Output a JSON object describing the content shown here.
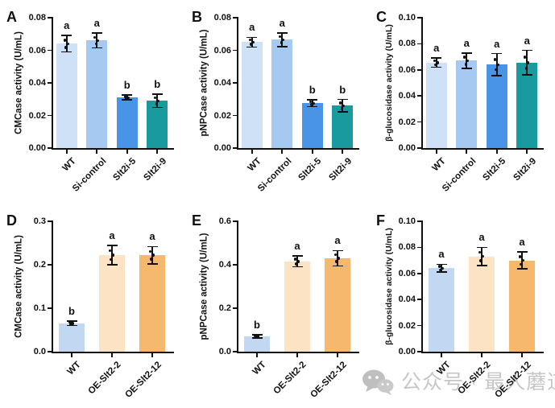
{
  "figure": {
    "watermark": {
      "icon": "wechat-icon",
      "text": "公众号 · 最人蘑道",
      "color": "#c6c6c6"
    }
  },
  "chart_data": [
    {
      "panel": "A",
      "type": "bar",
      "ylabel": "CMCase activity (U/mL)",
      "categories": [
        "WT",
        "Si-control",
        "Slt2i-5",
        "Slt2i-9"
      ],
      "values": [
        0.064,
        0.066,
        0.031,
        0.029
      ],
      "errors": [
        0.005,
        0.0045,
        0.0015,
        0.004
      ],
      "sig_letters": [
        "a",
        "a",
        "b",
        "b"
      ],
      "bar_colors": [
        "#cfe1f7",
        "#a6c9f1",
        "#4a94e8",
        "#189a9e"
      ],
      "ylim": [
        0,
        0.08
      ],
      "ytick_step": 0.02,
      "ytick_decimals": 2,
      "grid": false
    },
    {
      "panel": "B",
      "type": "bar",
      "ylabel": "pNPCase activity (U/mL)",
      "categories": [
        "WT",
        "Si-control",
        "Slt2i-5",
        "Slt2i-9"
      ],
      "values": [
        0.065,
        0.0665,
        0.0275,
        0.026
      ],
      "errors": [
        0.003,
        0.0042,
        0.002,
        0.0038
      ],
      "sig_letters": [
        "a",
        "a",
        "b",
        "b"
      ],
      "bar_colors": [
        "#cfe1f7",
        "#a6c9f1",
        "#4a94e8",
        "#189a9e"
      ],
      "ylim": [
        0,
        0.08
      ],
      "ytick_step": 0.02,
      "ytick_decimals": 2,
      "grid": false
    },
    {
      "panel": "C",
      "type": "bar",
      "ylabel": "β-glucosidase activity (U/mL)",
      "categories": [
        "WT",
        "Si-control",
        "Slt2i-5",
        "Slt2i-9"
      ],
      "values": [
        0.0655,
        0.067,
        0.064,
        0.0655
      ],
      "errors": [
        0.0035,
        0.006,
        0.0085,
        0.0095
      ],
      "sig_letters": [
        "a",
        "a",
        "a",
        "a"
      ],
      "bar_colors": [
        "#cfe1f7",
        "#a6c9f1",
        "#4a94e8",
        "#189a9e"
      ],
      "ylim": [
        0,
        0.1
      ],
      "ytick_step": 0.02,
      "ytick_decimals": 2,
      "grid": false
    },
    {
      "panel": "D",
      "type": "bar",
      "ylabel": "CMCase activity (U/mL)",
      "categories": [
        "WT",
        "OE-Slt2-2",
        "OE-Slt2-12"
      ],
      "values": [
        0.065,
        0.222,
        0.222
      ],
      "errors": [
        0.005,
        0.022,
        0.02
      ],
      "sig_letters": [
        "b",
        "a",
        "a"
      ],
      "bar_colors": [
        "#c2d8f2",
        "#fbe3c4",
        "#f6b86d"
      ],
      "ylim": [
        0,
        0.3
      ],
      "ytick_step": 0.1,
      "ytick_decimals": 1,
      "grid": false
    },
    {
      "panel": "E",
      "type": "bar",
      "ylabel": "pNPCase activity (U/mL)",
      "categories": [
        "WT",
        "OE-Slt2-2",
        "OE-Slt2-12"
      ],
      "values": [
        0.07,
        0.415,
        0.43
      ],
      "errors": [
        0.008,
        0.025,
        0.035
      ],
      "sig_letters": [
        "b",
        "a",
        "a"
      ],
      "bar_colors": [
        "#c2d8f2",
        "#fbe3c4",
        "#f6b86d"
      ],
      "ylim": [
        0,
        0.6
      ],
      "ytick_step": 0.2,
      "ytick_decimals": 1,
      "grid": false
    },
    {
      "panel": "F",
      "type": "bar",
      "ylabel": "β-glucosidase activity (U/mL)",
      "categories": [
        "WT",
        "OE-Slt2-2",
        "OE-Slt2-12"
      ],
      "values": [
        0.064,
        0.073,
        0.07
      ],
      "errors": [
        0.003,
        0.007,
        0.0065
      ],
      "sig_letters": [
        "a",
        "a",
        "a"
      ],
      "bar_colors": [
        "#c2d8f2",
        "#fbe3c4",
        "#f6b86d"
      ],
      "ylim": [
        0,
        0.1
      ],
      "ytick_step": 0.02,
      "ytick_decimals": 2,
      "grid": false
    }
  ]
}
